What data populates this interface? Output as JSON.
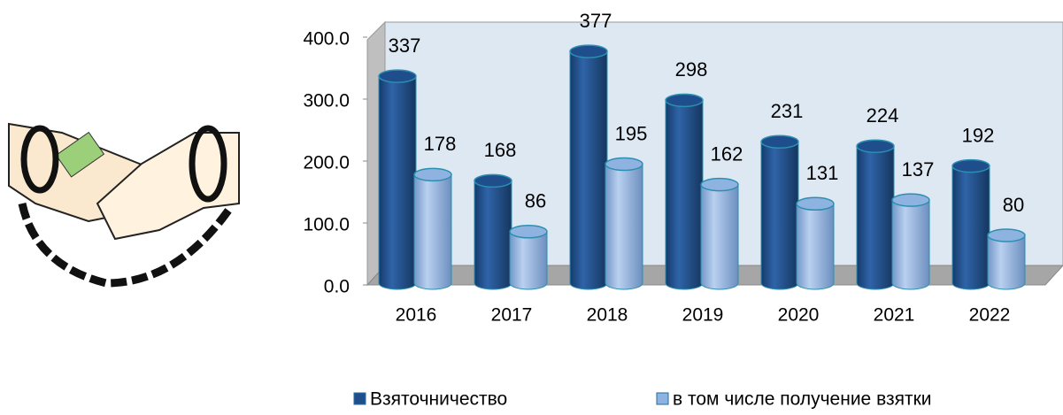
{
  "chart_data": {
    "type": "bar",
    "categories": [
      "2016",
      "2017",
      "2018",
      "2019",
      "2020",
      "2021",
      "2022"
    ],
    "series": [
      {
        "name": "Взяточничество",
        "color": "#1f4e8c",
        "values": [
          337,
          168,
          377,
          298,
          231,
          224,
          192
        ]
      },
      {
        "name": "в том числе получение взятки",
        "color": "#8fb3e0",
        "values": [
          178,
          86,
          195,
          162,
          131,
          137,
          80
        ]
      }
    ],
    "ylim": [
      0,
      400
    ],
    "yticks": [
      {
        "value": 0,
        "label": "0.0"
      },
      {
        "value": 100,
        "label": "100.0"
      },
      {
        "value": 200,
        "label": "200.0"
      },
      {
        "value": 300,
        "label": "300.0"
      },
      {
        "value": 400,
        "label": "400.0"
      }
    ],
    "legend": "bottom"
  }
}
